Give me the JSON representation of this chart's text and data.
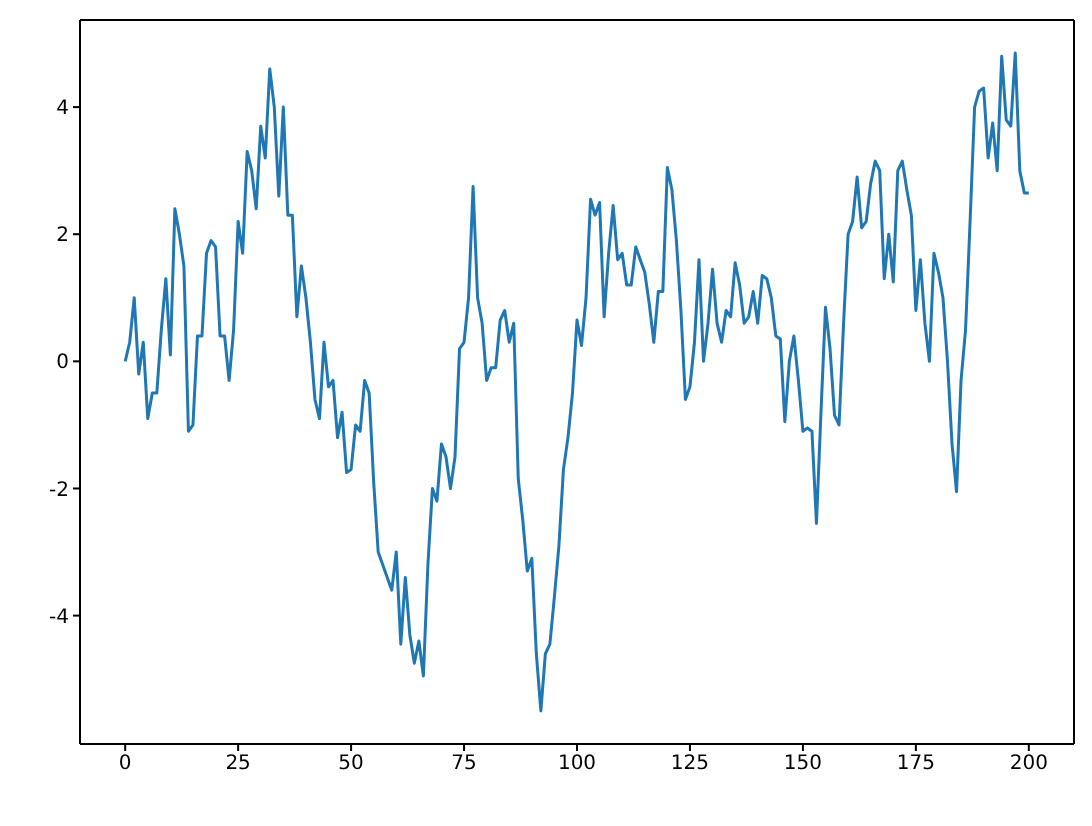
{
  "chart_data": {
    "type": "line",
    "x": [
      0,
      1,
      2,
      3,
      4,
      5,
      6,
      7,
      8,
      9,
      10,
      11,
      12,
      13,
      14,
      15,
      16,
      17,
      18,
      19,
      20,
      21,
      22,
      23,
      24,
      25,
      26,
      27,
      28,
      29,
      30,
      31,
      32,
      33,
      34,
      35,
      36,
      37,
      38,
      39,
      40,
      41,
      42,
      43,
      44,
      45,
      46,
      47,
      48,
      49,
      50,
      51,
      52,
      53,
      54,
      55,
      56,
      57,
      58,
      59,
      60,
      61,
      62,
      63,
      64,
      65,
      66,
      67,
      68,
      69,
      70,
      71,
      72,
      73,
      74,
      75,
      76,
      77,
      78,
      79,
      80,
      81,
      82,
      83,
      84,
      85,
      86,
      87,
      88,
      89,
      90,
      91,
      92,
      93,
      94,
      95,
      96,
      97,
      98,
      99,
      100,
      101,
      102,
      103,
      104,
      105,
      106,
      107,
      108,
      109,
      110,
      111,
      112,
      113,
      114,
      115,
      116,
      117,
      118,
      119,
      120,
      121,
      122,
      123,
      124,
      125,
      126,
      127,
      128,
      129,
      130,
      131,
      132,
      133,
      134,
      135,
      136,
      137,
      138,
      139,
      140,
      141,
      142,
      143,
      144,
      145,
      146,
      147,
      148,
      149,
      150,
      151,
      152,
      153,
      154,
      155,
      156,
      157,
      158,
      159,
      160,
      161,
      162,
      163,
      164,
      165,
      166,
      167,
      168,
      169,
      170,
      171,
      172,
      173,
      174,
      175,
      176,
      177,
      178,
      179,
      180,
      181,
      182,
      183,
      184,
      185,
      186,
      187,
      188,
      189,
      190,
      191,
      192,
      193,
      194,
      195,
      196,
      197,
      198,
      199,
      200
    ],
    "series": [
      {
        "color": "#1f77b4",
        "values": [
          0,
          0.3,
          1.0,
          -0.2,
          0.3,
          -0.9,
          -0.5,
          -0.5,
          0.5,
          1.3,
          0.1,
          2.4,
          2.0,
          1.5,
          -1.1,
          -1.0,
          0.4,
          0.4,
          1.7,
          1.9,
          1.8,
          0.4,
          0.4,
          -0.3,
          0.5,
          2.2,
          1.7,
          3.3,
          3.0,
          2.4,
          3.7,
          3.2,
          4.6,
          4.0,
          2.6,
          4.0,
          2.3,
          2.3,
          0.7,
          1.5,
          1.0,
          0.3,
          -0.6,
          -0.9,
          0.3,
          -0.4,
          -0.3,
          -1.2,
          -0.8,
          -1.75,
          -1.7,
          -1.0,
          -1.1,
          -0.3,
          -0.5,
          -1.9,
          -3.0,
          -3.2,
          -3.4,
          -3.6,
          -3.0,
          -4.45,
          -3.4,
          -4.3,
          -4.75,
          -4.4,
          -4.95,
          -3.2,
          -2.0,
          -2.2,
          -1.3,
          -1.5,
          -2.0,
          -1.5,
          0.2,
          0.3,
          1.0,
          2.75,
          1.0,
          0.6,
          -0.3,
          -0.1,
          -0.1,
          0.65,
          0.8,
          0.3,
          0.6,
          -1.85,
          -2.5,
          -3.3,
          -3.1,
          -4.6,
          -5.5,
          -4.6,
          -4.45,
          -3.7,
          -2.9,
          -1.7,
          -1.2,
          -0.5,
          0.65,
          0.25,
          1.0,
          2.55,
          2.3,
          2.5,
          0.7,
          1.7,
          2.45,
          1.6,
          1.7,
          1.2,
          1.2,
          1.8,
          1.6,
          1.4,
          0.9,
          0.3,
          1.1,
          1.1,
          3.05,
          2.7,
          1.9,
          0.8,
          -0.6,
          -0.4,
          0.3,
          1.6,
          0.0,
          0.6,
          1.45,
          0.6,
          0.3,
          0.8,
          0.7,
          1.55,
          1.2,
          0.6,
          0.7,
          1.1,
          0.6,
          1.35,
          1.3,
          1.0,
          0.4,
          0.35,
          -0.95,
          0.0,
          0.4,
          -0.3,
          -1.1,
          -1.05,
          -1.1,
          -2.55,
          -0.8,
          0.85,
          0.2,
          -0.85,
          -1.0,
          0.6,
          2.0,
          2.2,
          2.9,
          2.1,
          2.2,
          2.8,
          3.15,
          3.0,
          1.3,
          2.0,
          1.25,
          3.0,
          3.15,
          2.7,
          2.3,
          0.8,
          1.6,
          0.6,
          0.0,
          1.7,
          1.4,
          1.0,
          0.0,
          -1.3,
          -2.05,
          -0.3,
          0.5,
          2.2,
          4.0,
          4.25,
          4.3,
          3.2,
          3.75,
          3.0,
          4.8,
          3.8,
          3.7,
          4.85,
          3.0,
          2.65,
          2.65
        ]
      }
    ],
    "xlim": [
      -10,
      210
    ],
    "xticks": [
      0,
      25,
      50,
      75,
      100,
      125,
      150,
      175,
      200
    ],
    "ylim": [
      -6.02,
      5.37
    ],
    "yticks": [
      -4,
      -2,
      0,
      2,
      4
    ],
    "grid": false,
    "marker": "none",
    "line_style": "solid"
  }
}
